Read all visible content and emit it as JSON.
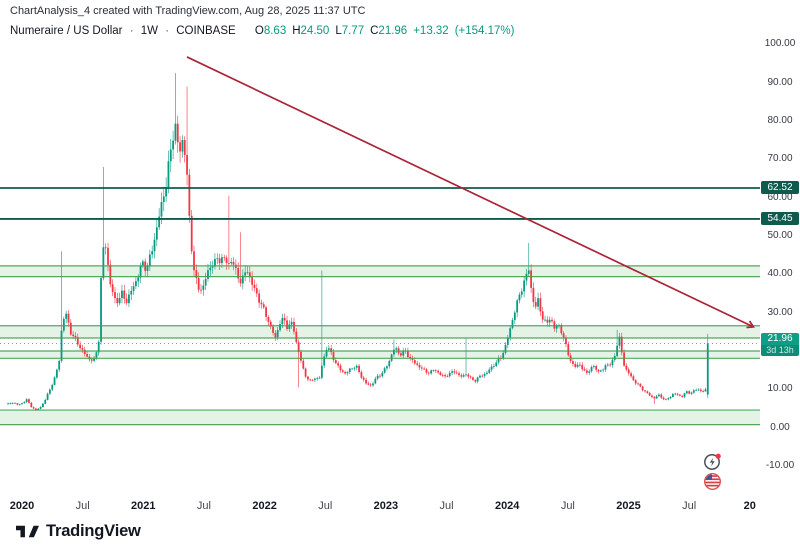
{
  "attribution": "ChartAnalysis_4 created with TradingView.com, Aug 28, 2025 11:37 UTC",
  "legend": {
    "symbol": "Numeraire / US Dollar",
    "sep1": "·",
    "interval": "1W",
    "sep2": "·",
    "exchange": "COINBASE",
    "o_label": "O",
    "o_val": "8.63",
    "h_label": "H",
    "h_val": "24.50",
    "l_label": "L",
    "l_val": "7.77",
    "c_label": "C",
    "c_val": "21.96",
    "change": "+13.32",
    "change_pct": "(+154.17%)"
  },
  "price_axis": {
    "ticks": [
      {
        "label": "100.00",
        "value": 100
      },
      {
        "label": "90.00",
        "value": 90
      },
      {
        "label": "80.00",
        "value": 80
      },
      {
        "label": "70.00",
        "value": 70
      },
      {
        "label": "60.00",
        "value": 60
      },
      {
        "label": "50.00",
        "value": 50
      },
      {
        "label": "40.00",
        "value": 40
      },
      {
        "label": "30.00",
        "value": 30
      },
      {
        "label": "10.00",
        "value": 10
      },
      {
        "label": "0.00",
        "value": 0
      },
      {
        "label": "-10.00",
        "value": -10
      }
    ],
    "level_badges": [
      {
        "label": "62.52",
        "value": 62.52
      },
      {
        "label": "54.45",
        "value": 54.45
      }
    ],
    "price_badge": {
      "label": "21.96",
      "value": 21.96,
      "countdown": "3d 13h"
    }
  },
  "time_axis": {
    "labels": [
      {
        "text": "2020",
        "t": 2020.0,
        "bold": true
      },
      {
        "text": "Jul",
        "t": 2020.5,
        "bold": false
      },
      {
        "text": "2021",
        "t": 2021.0,
        "bold": true
      },
      {
        "text": "Jul",
        "t": 2021.5,
        "bold": false
      },
      {
        "text": "2022",
        "t": 2022.0,
        "bold": true
      },
      {
        "text": "Jul",
        "t": 2022.5,
        "bold": false
      },
      {
        "text": "2023",
        "t": 2023.0,
        "bold": true
      },
      {
        "text": "Jul",
        "t": 2023.5,
        "bold": false
      },
      {
        "text": "2024",
        "t": 2024.0,
        "bold": true
      },
      {
        "text": "Jul",
        "t": 2024.5,
        "bold": false
      },
      {
        "text": "2025",
        "t": 2025.0,
        "bold": true
      },
      {
        "text": "Jul",
        "t": 2025.5,
        "bold": false
      },
      {
        "text": "20",
        "t": 2026.0,
        "bold": true
      }
    ]
  },
  "logo": {
    "brand": "TradingView"
  },
  "event_icons": [
    {
      "name": "flash-event-icon"
    },
    {
      "name": "us-flag-economic-event-icon"
    }
  ],
  "colors": {
    "up": "#089981",
    "down": "#f23645",
    "zone_fill": "rgba(76,175,80,0.15)",
    "zone_border": "rgba(67,158,74,0.9)",
    "level_line": "#0e5b4d",
    "trendline": "#ab2437",
    "price_line": "#9598a1",
    "price_badge": "#0f9e85",
    "text": "#131722"
  },
  "chart_data": {
    "type": "candlestick",
    "title": "Numeraire / US Dollar, 1W, COINBASE",
    "ylabel": "Price (USD)",
    "visible_price_range": [
      -18,
      111
    ],
    "x_domain_years": [
      2019.88,
      2026.05
    ],
    "last_candle": {
      "open": 8.63,
      "high": 24.5,
      "low": 7.77,
      "close": 21.96,
      "change": "+13.32",
      "change_pct": "+154.17%"
    },
    "price_line": 21.96,
    "horizontal_levels": [
      62.52,
      54.45
    ],
    "support_zones": [
      {
        "low": 39.4,
        "high": 42.2
      },
      {
        "low": 23.4,
        "high": 26.6
      },
      {
        "low": 18.1,
        "high": 20.0
      },
      {
        "low": 0.8,
        "high": 4.6
      }
    ],
    "trendline": {
      "from": {
        "t": 2021.36,
        "price": 96.7
      },
      "to": {
        "t": 2026.03,
        "price": 26.3
      }
    },
    "anchors": [
      [
        2019.885,
        6.2
      ],
      [
        2019.93,
        6.6
      ],
      [
        2019.97,
        5.9
      ],
      [
        2020.0,
        6.4
      ],
      [
        2020.04,
        7.4
      ],
      [
        2020.07,
        5.6
      ],
      [
        2020.115,
        4.6
      ],
      [
        2020.15,
        5.2
      ],
      [
        2020.19,
        7.2
      ],
      [
        2020.23,
        10.0
      ],
      [
        2020.27,
        13.0
      ],
      [
        2020.305,
        17.0
      ],
      [
        2020.33,
        27.0
      ],
      [
        2020.36,
        30.0
      ],
      [
        2020.4,
        25.0
      ],
      [
        2020.44,
        23.0
      ],
      [
        2020.48,
        21.0
      ],
      [
        2020.51,
        19.5
      ],
      [
        2020.55,
        18.0
      ],
      [
        2020.59,
        17.5
      ],
      [
        2020.63,
        21.0
      ],
      [
        2020.65,
        38.0
      ],
      [
        2020.68,
        50.0
      ],
      [
        2020.7,
        45.0
      ],
      [
        2020.73,
        37.0
      ],
      [
        2020.775,
        32.5
      ],
      [
        2020.82,
        35.0
      ],
      [
        2020.86,
        33.0
      ],
      [
        2020.9,
        35.5
      ],
      [
        2020.95,
        39.0
      ],
      [
        2020.99,
        43.0
      ],
      [
        2021.03,
        41.5
      ],
      [
        2021.07,
        46.0
      ],
      [
        2021.11,
        52.0
      ],
      [
        2021.15,
        58.0
      ],
      [
        2021.195,
        65.0
      ],
      [
        2021.23,
        73.0
      ],
      [
        2021.26,
        80.0
      ],
      [
        2021.295,
        71.0
      ],
      [
        2021.33,
        76.0
      ],
      [
        2021.36,
        66.0
      ],
      [
        2021.385,
        51.0
      ],
      [
        2021.42,
        41.0
      ],
      [
        2021.45,
        36.0
      ],
      [
        2021.49,
        36.5
      ],
      [
        2021.525,
        40.0
      ],
      [
        2021.57,
        43.0
      ],
      [
        2021.61,
        43.5
      ],
      [
        2021.65,
        44.5
      ],
      [
        2021.7,
        42.5
      ],
      [
        2021.73,
        44.0
      ],
      [
        2021.77,
        40.0
      ],
      [
        2021.81,
        38.0
      ],
      [
        2021.855,
        41.5
      ],
      [
        2021.895,
        37.5
      ],
      [
        2021.94,
        34.5
      ],
      [
        2021.98,
        31.5
      ],
      [
        2022.02,
        29.0
      ],
      [
        2022.05,
        26.0
      ],
      [
        2022.09,
        23.5
      ],
      [
        2022.12,
        27.0
      ],
      [
        2022.16,
        28.5
      ],
      [
        2022.19,
        26.0
      ],
      [
        2022.23,
        27.5
      ],
      [
        2022.26,
        22.5
      ],
      [
        2022.29,
        18.5
      ],
      [
        2022.33,
        14.0
      ],
      [
        2022.37,
        12.0
      ],
      [
        2022.415,
        13.0
      ],
      [
        2022.45,
        12.5
      ],
      [
        2022.48,
        17.5
      ],
      [
        2022.515,
        21.0
      ],
      [
        2022.55,
        19.5
      ],
      [
        2022.59,
        16.5
      ],
      [
        2022.63,
        15.0
      ],
      [
        2022.67,
        14.0
      ],
      [
        2022.71,
        15.5
      ],
      [
        2022.755,
        16.0
      ],
      [
        2022.795,
        13.5
      ],
      [
        2022.835,
        11.5
      ],
      [
        2022.88,
        11.0
      ],
      [
        2022.92,
        13.0
      ],
      [
        2022.96,
        14.0
      ],
      [
        2023.0,
        15.5
      ],
      [
        2023.04,
        18.5
      ],
      [
        2023.075,
        21.0
      ],
      [
        2023.115,
        19.0
      ],
      [
        2023.16,
        20.0
      ],
      [
        2023.2,
        18.0
      ],
      [
        2023.24,
        16.8
      ],
      [
        2023.28,
        15.8
      ],
      [
        2023.32,
        14.8
      ],
      [
        2023.36,
        14.3
      ],
      [
        2023.405,
        15.3
      ],
      [
        2023.445,
        13.8
      ],
      [
        2023.49,
        13.4
      ],
      [
        2023.53,
        14.2
      ],
      [
        2023.57,
        14.8
      ],
      [
        2023.61,
        13.2
      ],
      [
        2023.66,
        14.0
      ],
      [
        2023.7,
        12.8
      ],
      [
        2023.74,
        12.3
      ],
      [
        2023.78,
        13.6
      ],
      [
        2023.83,
        14.2
      ],
      [
        2023.87,
        15.8
      ],
      [
        2023.91,
        17.0
      ],
      [
        2023.95,
        18.5
      ],
      [
        2023.99,
        21.5
      ],
      [
        2024.02,
        25.5
      ],
      [
        2024.06,
        30.0
      ],
      [
        2024.09,
        33.5
      ],
      [
        2024.12,
        36.5
      ],
      [
        2024.155,
        39.0
      ],
      [
        2024.18,
        42.0
      ],
      [
        2024.205,
        34.0
      ],
      [
        2024.23,
        31.0
      ],
      [
        2024.255,
        33.5
      ],
      [
        2024.29,
        28.5
      ],
      [
        2024.32,
        27.0
      ],
      [
        2024.355,
        29.0
      ],
      [
        2024.385,
        25.5
      ],
      [
        2024.42,
        27.5
      ],
      [
        2024.455,
        24.0
      ],
      [
        2024.485,
        21.5
      ],
      [
        2024.52,
        17.5
      ],
      [
        2024.55,
        15.8
      ],
      [
        2024.59,
        16.8
      ],
      [
        2024.62,
        15.2
      ],
      [
        2024.655,
        14.4
      ],
      [
        2024.69,
        15.3
      ],
      [
        2024.72,
        16.2
      ],
      [
        2024.755,
        14.4
      ],
      [
        2024.79,
        15.2
      ],
      [
        2024.82,
        16.8
      ],
      [
        2024.85,
        16.2
      ],
      [
        2024.88,
        18.2
      ],
      [
        2024.905,
        21.5
      ],
      [
        2024.93,
        23.5
      ],
      [
        2024.955,
        17.0
      ],
      [
        2024.98,
        15.2
      ],
      [
        2025.01,
        13.8
      ],
      [
        2025.045,
        12.2
      ],
      [
        2025.08,
        11.2
      ],
      [
        2025.11,
        10.2
      ],
      [
        2025.145,
        9.2
      ],
      [
        2025.18,
        8.3
      ],
      [
        2025.21,
        7.6
      ],
      [
        2025.245,
        8.6
      ],
      [
        2025.28,
        7.7
      ],
      [
        2025.31,
        7.2
      ],
      [
        2025.345,
        8.1
      ],
      [
        2025.375,
        9.0
      ],
      [
        2025.41,
        8.5
      ],
      [
        2025.44,
        8.1
      ],
      [
        2025.475,
        9.4
      ],
      [
        2025.505,
        9.0
      ],
      [
        2025.54,
        9.6
      ],
      [
        2025.57,
        10.1
      ],
      [
        2025.605,
        9.4
      ],
      [
        2025.635,
        9.8
      ],
      [
        2025.67,
        21.96
      ]
    ],
    "spikes": [
      {
        "t": 2020.33,
        "high": 46
      },
      {
        "t": 2020.68,
        "high": 68
      },
      {
        "t": 2021.26,
        "high": 92.5
      },
      {
        "t": 2021.36,
        "high": 89
      },
      {
        "t": 2021.7,
        "high": 60.5
      },
      {
        "t": 2021.81,
        "high": 51
      },
      {
        "t": 2022.29,
        "low": 10.5
      },
      {
        "t": 2022.48,
        "high": 41
      },
      {
        "t": 2023.075,
        "high": 23
      },
      {
        "t": 2023.66,
        "high": 23.5
      },
      {
        "t": 2024.18,
        "high": 48.2
      },
      {
        "t": 2024.905,
        "high": 25.5
      },
      {
        "t": 2025.21,
        "low": 6.2
      }
    ]
  }
}
